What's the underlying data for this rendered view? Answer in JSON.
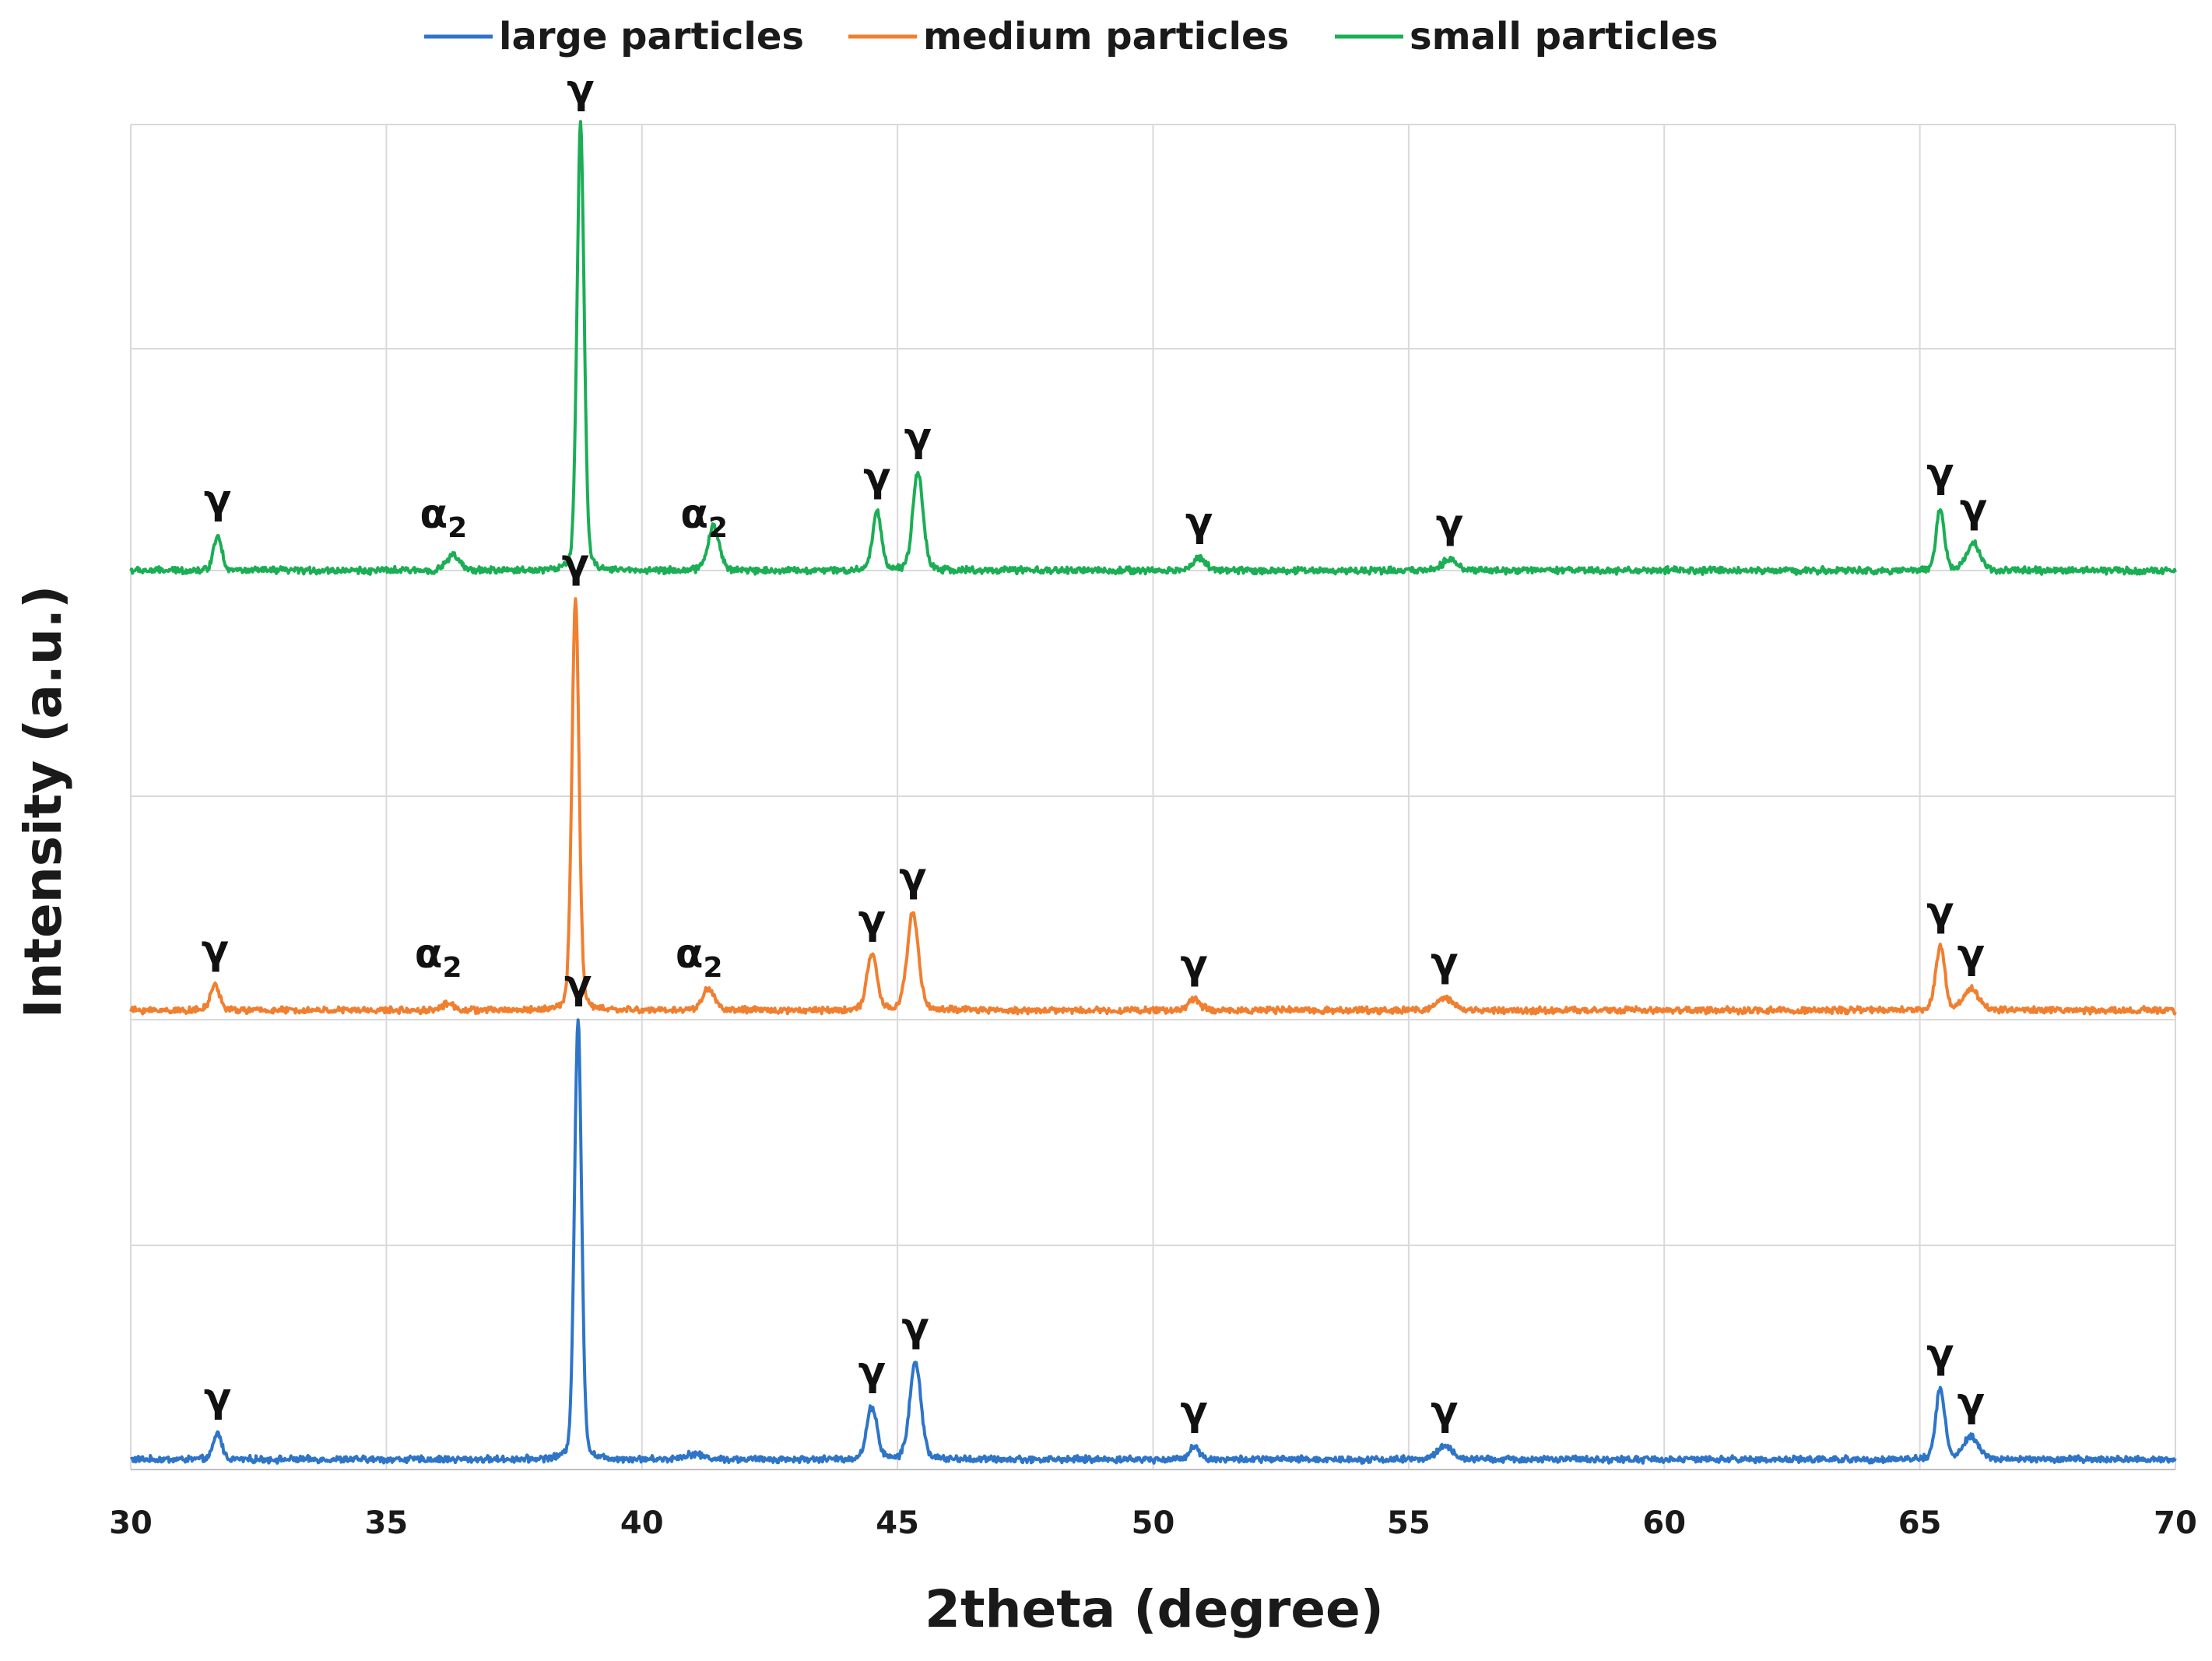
{
  "chart_data": {
    "type": "line",
    "title": "",
    "xlabel": "2theta (degree)",
    "ylabel": "Intensity (a.u.)",
    "xlim": [
      30,
      70
    ],
    "xticks": [
      "30",
      "35",
      "40",
      "45",
      "50",
      "55",
      "60",
      "65",
      "70"
    ],
    "grid": true,
    "legend_position": "top-center",
    "legend": [
      {
        "name": "large particles",
        "color": "#2E75C8"
      },
      {
        "name": "medium particles",
        "color": "#F07F30"
      },
      {
        "name": "small particles",
        "color": "#1BAE55"
      }
    ],
    "series": [
      {
        "name": "large particles",
        "color": "#2E75C8",
        "peaks": [
          {
            "x": 31.7,
            "intensity": 0.06,
            "width": 0.08
          },
          {
            "x": 38.75,
            "intensity": 1.0,
            "width": 0.07
          },
          {
            "x": 41.0,
            "intensity": 0.012,
            "width": 0.2
          },
          {
            "x": 44.5,
            "intensity": 0.12,
            "width": 0.1
          },
          {
            "x": 45.35,
            "intensity": 0.22,
            "width": 0.11
          },
          {
            "x": 50.8,
            "intensity": 0.03,
            "width": 0.1
          },
          {
            "x": 55.7,
            "intensity": 0.03,
            "width": 0.15
          },
          {
            "x": 65.4,
            "intensity": 0.16,
            "width": 0.09
          },
          {
            "x": 66.0,
            "intensity": 0.05,
            "width": 0.15
          }
        ],
        "annotations": [
          {
            "x": 31.7,
            "text": "γ",
            "sub": ""
          },
          {
            "x": 38.75,
            "text": "γ",
            "sub": ""
          },
          {
            "x": 44.5,
            "text": "γ",
            "sub": ""
          },
          {
            "x": 45.35,
            "text": "γ",
            "sub": ""
          },
          {
            "x": 50.8,
            "text": "γ",
            "sub": ""
          },
          {
            "x": 55.7,
            "text": "γ",
            "sub": ""
          },
          {
            "x": 65.4,
            "text": "γ",
            "sub": ""
          },
          {
            "x": 66.0,
            "text": "γ",
            "sub": ""
          }
        ]
      },
      {
        "name": "medium particles",
        "color": "#F07F30",
        "peaks": [
          {
            "x": 31.65,
            "intensity": 0.06,
            "width": 0.09
          },
          {
            "x": 36.2,
            "intensity": 0.015,
            "width": 0.12
          },
          {
            "x": 38.7,
            "intensity": 0.97,
            "width": 0.07
          },
          {
            "x": 41.3,
            "intensity": 0.05,
            "width": 0.12
          },
          {
            "x": 44.5,
            "intensity": 0.13,
            "width": 0.1
          },
          {
            "x": 45.3,
            "intensity": 0.23,
            "width": 0.11
          },
          {
            "x": 50.8,
            "intensity": 0.025,
            "width": 0.12
          },
          {
            "x": 55.7,
            "intensity": 0.03,
            "width": 0.15
          },
          {
            "x": 65.4,
            "intensity": 0.15,
            "width": 0.09
          },
          {
            "x": 66.0,
            "intensity": 0.05,
            "width": 0.15
          }
        ],
        "annotations": [
          {
            "x": 31.65,
            "text": "γ",
            "sub": ""
          },
          {
            "x": 36.2,
            "text": "α",
            "sub": "2"
          },
          {
            "x": 38.7,
            "text": "γ",
            "sub": ""
          },
          {
            "x": 41.3,
            "text": "α",
            "sub": "2"
          },
          {
            "x": 44.5,
            "text": "γ",
            "sub": ""
          },
          {
            "x": 45.3,
            "text": "γ",
            "sub": ""
          },
          {
            "x": 50.8,
            "text": "γ",
            "sub": ""
          },
          {
            "x": 55.7,
            "text": "γ",
            "sub": ""
          },
          {
            "x": 65.4,
            "text": "γ",
            "sub": ""
          },
          {
            "x": 66.0,
            "text": "γ",
            "sub": ""
          }
        ]
      },
      {
        "name": "small particles",
        "color": "#1BAE55",
        "peaks": [
          {
            "x": 31.7,
            "intensity": 0.08,
            "width": 0.08
          },
          {
            "x": 36.3,
            "intensity": 0.035,
            "width": 0.12
          },
          {
            "x": 38.8,
            "intensity": 1.0,
            "width": 0.07
          },
          {
            "x": 41.4,
            "intensity": 0.1,
            "width": 0.11
          },
          {
            "x": 44.6,
            "intensity": 0.13,
            "width": 0.09
          },
          {
            "x": 45.4,
            "intensity": 0.22,
            "width": 0.1
          },
          {
            "x": 50.9,
            "intensity": 0.03,
            "width": 0.12
          },
          {
            "x": 55.8,
            "intensity": 0.025,
            "width": 0.15
          },
          {
            "x": 65.4,
            "intensity": 0.14,
            "width": 0.08
          },
          {
            "x": 66.05,
            "intensity": 0.06,
            "width": 0.13
          }
        ],
        "annotations": [
          {
            "x": 31.7,
            "text": "γ",
            "sub": ""
          },
          {
            "x": 36.3,
            "text": "α",
            "sub": "2"
          },
          {
            "x": 38.8,
            "text": "γ",
            "sub": ""
          },
          {
            "x": 41.4,
            "text": "α",
            "sub": "2"
          },
          {
            "x": 44.6,
            "text": "γ",
            "sub": ""
          },
          {
            "x": 45.4,
            "text": "γ",
            "sub": ""
          },
          {
            "x": 50.9,
            "text": "γ",
            "sub": ""
          },
          {
            "x": 55.8,
            "text": "γ",
            "sub": ""
          },
          {
            "x": 65.4,
            "text": "γ",
            "sub": ""
          },
          {
            "x": 66.05,
            "text": "γ",
            "sub": ""
          }
        ]
      }
    ]
  }
}
